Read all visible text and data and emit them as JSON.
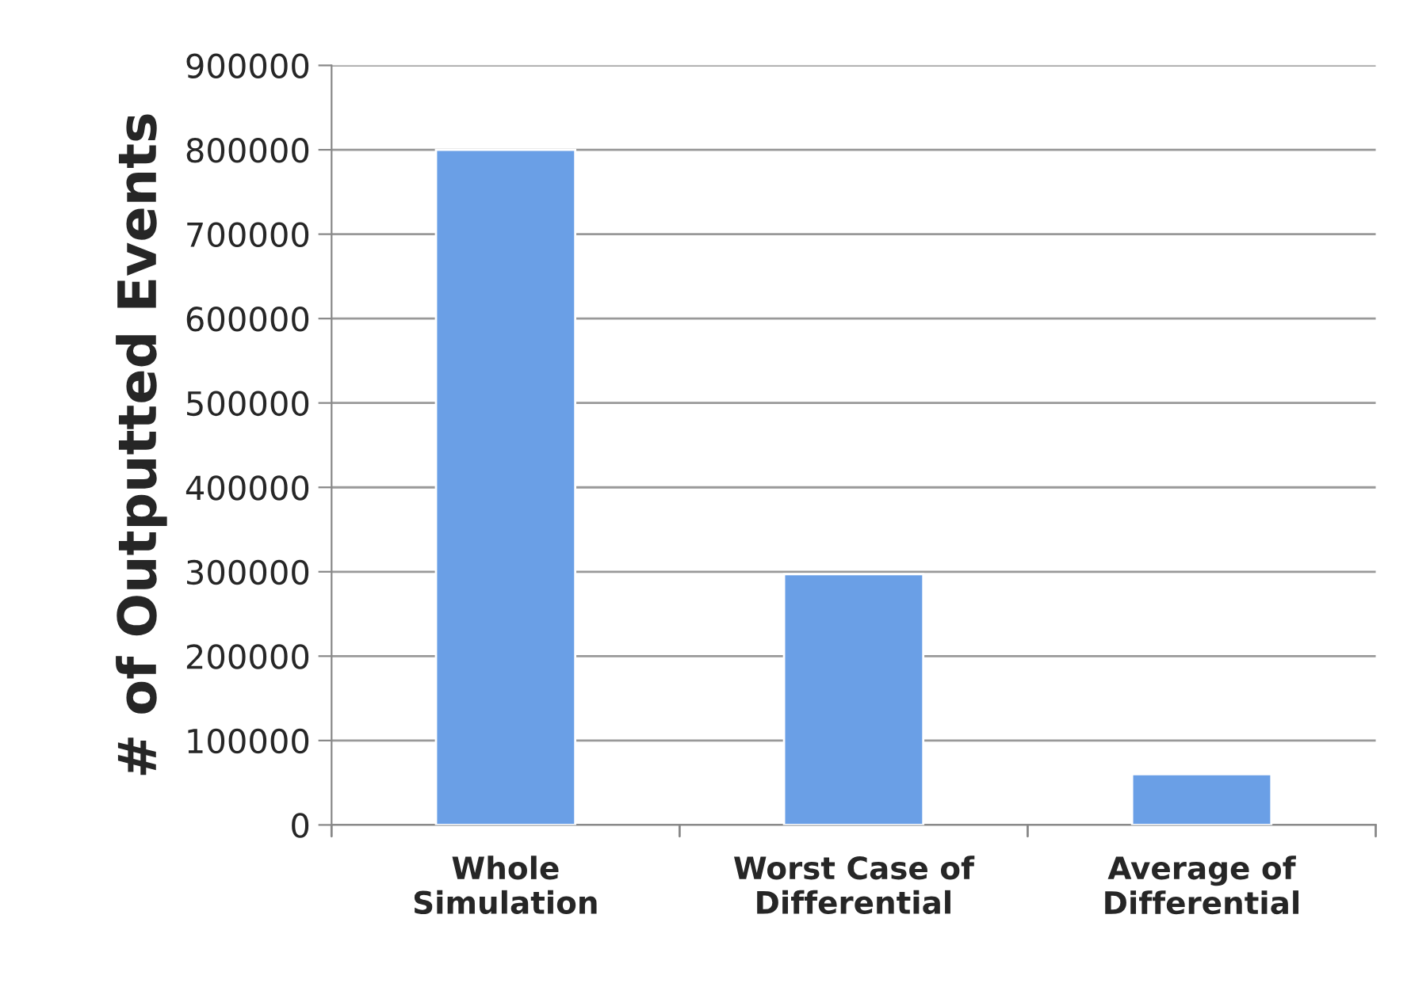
{
  "chart_data": {
    "type": "bar",
    "ylabel": "# of Outputted Events",
    "categories": [
      "Whole\nSimulation",
      "Worst Case of\nDifferential",
      "Average of\nDifferential"
    ],
    "values": [
      800000,
      297000,
      60000
    ],
    "color": "#6a9fe6",
    "ylim": [
      0,
      900000
    ],
    "yticks": [
      0,
      100000,
      200000,
      300000,
      400000,
      500000,
      600000,
      700000,
      800000,
      900000
    ],
    "grid": "y",
    "legend": false
  }
}
